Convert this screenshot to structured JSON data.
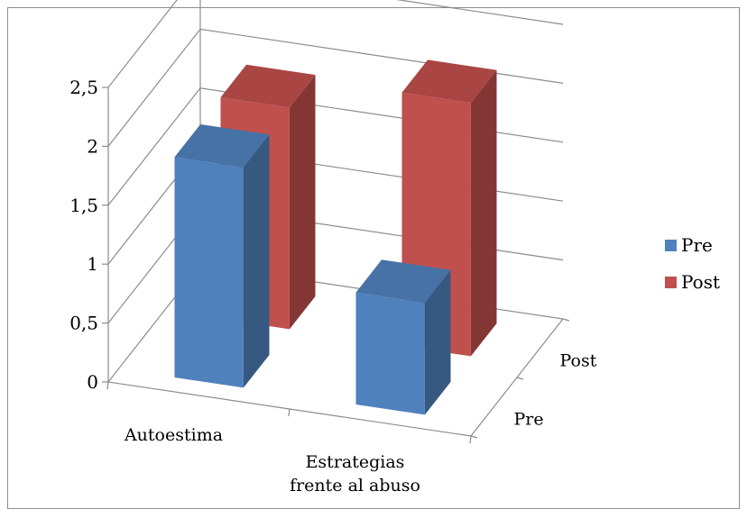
{
  "chart_data": {
    "type": "bar",
    "style": "3d-clustered-depth",
    "categories": [
      "Autoestima",
      "Estrategias frente al abuso"
    ],
    "category_lines": [
      [
        "Autoestima"
      ],
      [
        "Estrategias",
        "frente al abuso"
      ]
    ],
    "depth_categories": [
      "Pre",
      "Post"
    ],
    "series": [
      {
        "name": "Pre",
        "values": [
          1.87,
          0.95
        ],
        "color": "#4f81bd"
      },
      {
        "name": "Post",
        "values": [
          1.88,
          2.15
        ],
        "color": "#c0504d"
      }
    ],
    "yticks": [
      "0",
      "0,5",
      "1",
      "1,5",
      "2",
      "2,5"
    ],
    "ylim": [
      0,
      2.5
    ],
    "grid": true,
    "legend": {
      "position": "right",
      "entries": [
        "Pre",
        "Post"
      ]
    }
  }
}
